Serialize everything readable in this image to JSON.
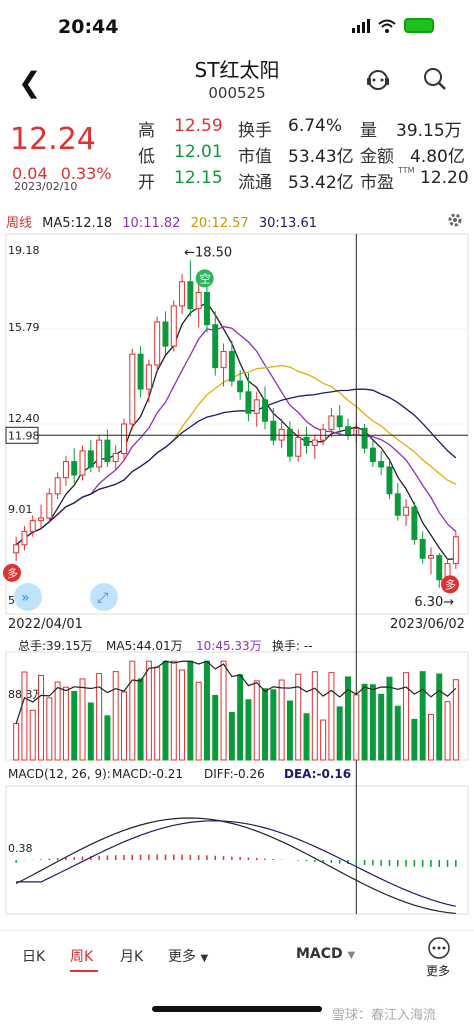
{
  "status": {
    "time": "20:44"
  },
  "header": {
    "title": "ST红太阳",
    "code": "000525"
  },
  "quote": {
    "price": "12.24",
    "change": "0.04",
    "change_pct": "0.33%",
    "date": "2023/02/10",
    "fields": [
      {
        "label": "高",
        "value": "12.59",
        "color": "#e0302f"
      },
      {
        "label": "换手",
        "value": "6.74%",
        "color": "#222222"
      },
      {
        "label": "量",
        "value": "39.15万",
        "color": "#222222"
      },
      {
        "label": "低",
        "value": "12.01",
        "color": "#0a9a3c"
      },
      {
        "label": "市值",
        "value": "53.43亿",
        "color": "#222222"
      },
      {
        "label": "金额",
        "value": "4.80亿",
        "color": "#222222"
      },
      {
        "label": "开",
        "value": "12.15",
        "color": "#0a9a3c"
      },
      {
        "label": "流通",
        "value": "53.42亿",
        "color": "#222222"
      },
      {
        "label": "市盈",
        "value": "12.20",
        "color": "#222222"
      }
    ],
    "pe_sup": "TTM"
  },
  "kline": {
    "period_label": "周线",
    "ma5": "MA5:12.18",
    "ma10": "10:11.82",
    "ma20": "20:12.57",
    "ma30": "30:13.61",
    "y_labels": [
      "19.18",
      "15.79",
      "12.40",
      "9.01",
      "5.62"
    ],
    "crosshair_price": "11.98",
    "high_mark": "←18.50",
    "low_mark": "6.30→",
    "x_start": "2022/04/01",
    "x_end": "2023/06/02",
    "empty_badge": "空",
    "sell_badge": "多"
  },
  "volume": {
    "total": "总手:39.15万",
    "ma5": "MA5:44.01万",
    "ma10": "10:45.33万",
    "turnover": "换手: --",
    "y_label": "88.3万"
  },
  "macd": {
    "title": "MACD(12, 26, 9):",
    "macd": "MACD:-0.21",
    "diff": "DIFF:-0.26",
    "dea": "DEA:-0.16",
    "y_label": "0.38"
  },
  "tabs": {
    "day": "日K",
    "week": "周K",
    "month": "月K",
    "more": "更多",
    "indicator": "MACD",
    "more2": "更多"
  },
  "footer": {
    "watermark": "雪球：春江入海流"
  },
  "colors": {
    "up": "#e0302f",
    "down": "#0a9a3c",
    "ma5": "#222222",
    "ma10": "#8e2fc0",
    "ma20": "#e0b000",
    "ma30": "#1a1a6e"
  },
  "chart_data": {
    "type": "candlestick",
    "candles": [
      [
        7.6,
        8.2,
        7.3,
        7.9
      ],
      [
        7.9,
        8.6,
        7.7,
        8.4
      ],
      [
        8.4,
        9.0,
        8.2,
        8.8
      ],
      [
        8.8,
        9.4,
        8.5,
        8.9
      ],
      [
        8.9,
        10.0,
        8.7,
        9.8
      ],
      [
        9.8,
        10.6,
        9.6,
        10.4
      ],
      [
        10.4,
        11.2,
        10.1,
        11.0
      ],
      [
        11.0,
        11.5,
        10.2,
        10.5
      ],
      [
        10.5,
        11.6,
        10.3,
        11.4
      ],
      [
        11.4,
        11.8,
        10.6,
        10.8
      ],
      [
        10.8,
        12.0,
        10.6,
        11.8
      ],
      [
        11.8,
        12.2,
        10.8,
        11.0
      ],
      [
        11.0,
        11.6,
        10.7,
        11.3
      ],
      [
        11.3,
        12.6,
        11.1,
        12.4
      ],
      [
        12.4,
        15.2,
        12.2,
        15.0
      ],
      [
        15.0,
        15.3,
        13.4,
        13.7
      ],
      [
        13.7,
        14.8,
        13.2,
        14.6
      ],
      [
        14.6,
        16.4,
        14.3,
        16.2
      ],
      [
        16.2,
        16.6,
        15.0,
        15.3
      ],
      [
        15.3,
        17.0,
        15.1,
        16.8
      ],
      [
        16.8,
        18.0,
        16.5,
        17.7
      ],
      [
        17.7,
        18.5,
        16.4,
        16.7
      ],
      [
        16.7,
        17.6,
        16.0,
        17.3
      ],
      [
        17.3,
        17.8,
        15.8,
        16.1
      ],
      [
        16.1,
        16.6,
        14.2,
        14.5
      ],
      [
        14.5,
        15.4,
        13.8,
        15.1
      ],
      [
        15.1,
        15.5,
        13.8,
        14.0
      ],
      [
        14.0,
        14.4,
        13.3,
        13.6
      ],
      [
        13.6,
        14.3,
        12.5,
        12.8
      ],
      [
        12.8,
        13.6,
        12.3,
        13.3
      ],
      [
        13.3,
        13.8,
        12.2,
        12.5
      ],
      [
        12.5,
        13.0,
        11.6,
        11.8
      ],
      [
        11.8,
        12.6,
        11.5,
        12.2
      ],
      [
        12.2,
        12.5,
        11.0,
        11.2
      ],
      [
        11.2,
        12.2,
        11.0,
        11.9
      ],
      [
        11.9,
        12.3,
        11.3,
        11.6
      ],
      [
        11.6,
        12.0,
        11.1,
        11.8
      ],
      [
        11.8,
        12.4,
        11.6,
        12.2
      ],
      [
        12.2,
        13.0,
        11.9,
        12.7
      ],
      [
        12.7,
        13.1,
        12.0,
        12.3
      ],
      [
        12.3,
        12.6,
        11.8,
        12.0
      ],
      [
        12.0,
        12.4,
        11.7,
        12.24
      ],
      [
        12.24,
        12.4,
        11.3,
        11.5
      ],
      [
        11.5,
        11.8,
        10.8,
        11.0
      ],
      [
        11.0,
        11.4,
        10.5,
        10.8
      ],
      [
        10.8,
        11.0,
        9.6,
        9.8
      ],
      [
        9.8,
        10.2,
        8.8,
        9.0
      ],
      [
        9.0,
        9.6,
        8.6,
        9.3
      ],
      [
        9.3,
        9.5,
        7.9,
        8.1
      ],
      [
        8.1,
        8.4,
        7.2,
        7.4
      ],
      [
        7.4,
        7.8,
        6.8,
        7.5
      ],
      [
        7.5,
        7.6,
        6.3,
        6.6
      ],
      [
        6.6,
        7.4,
        6.4,
        7.2
      ],
      [
        7.2,
        8.4,
        7.0,
        8.2
      ]
    ],
    "ylim": [
      5.62,
      19.18
    ]
  }
}
